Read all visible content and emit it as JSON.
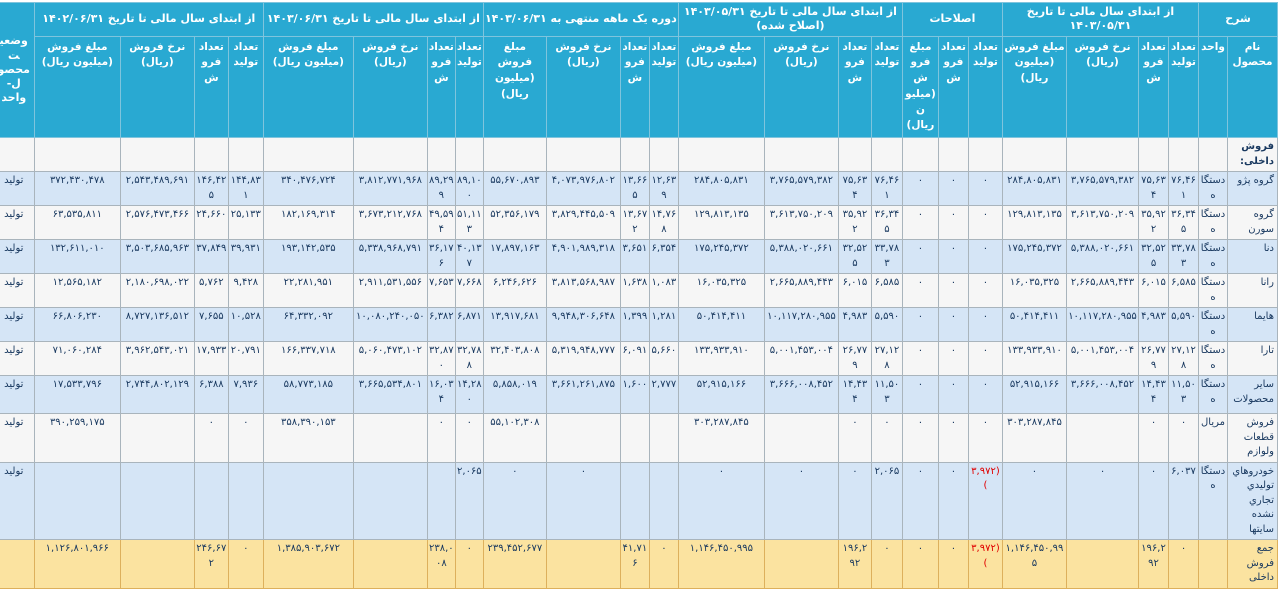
{
  "table": {
    "status_header": "وضعیت محصول- واحد",
    "sharh_header": "شرح",
    "name_header": "نام محصول",
    "unit_header": "واحد",
    "col_labels": {
      "tolid": "تعداد تولید",
      "forush": "تعداد فروش",
      "nerkh": "نرخ فروش (ریال)",
      "mablagh": "مبلغ فروش (میلیون ریال)"
    },
    "groups": [
      {
        "id": "g2",
        "title": "از ابتدای سال مالی تا تاریخ ۱۴۰۳/۰۵/۳۱",
        "cols": [
          "tolid",
          "forush",
          "nerkh",
          "mablagh"
        ]
      },
      {
        "id": "ga",
        "title": "اصلاحات",
        "cols": [
          "tolid",
          "forush",
          "mablagh"
        ]
      },
      {
        "id": "g4",
        "title": "از ابتدای سال مالی تا تاریخ ۱۴۰۳/۰۵/۳۱ (اصلاح شده)",
        "cols": [
          "tolid",
          "forush",
          "nerkh",
          "mablagh"
        ]
      },
      {
        "id": "g5",
        "title": "دوره یک ماهه منتهی به ۱۴۰۳/۰۶/۳۱",
        "cols": [
          "tolid",
          "forush",
          "nerkh",
          "mablagh"
        ]
      },
      {
        "id": "g6",
        "title": "از ابتدای سال مالی تا تاریخ ۱۴۰۳/۰۶/۳۱",
        "cols": [
          "tolid",
          "forush",
          "nerkh",
          "mablagh"
        ]
      },
      {
        "id": "g7",
        "title": "از ابتدای سال مالی تا تاریخ ۱۴۰۲/۰۶/۳۱",
        "cols": [
          "tolid",
          "forush",
          "nerkh",
          "mablagh"
        ]
      }
    ],
    "section_row": {
      "label": "فروش داخلی:"
    },
    "rows": [
      {
        "key": "peugeot",
        "name": "گروه پژو",
        "unit": "دستگاه",
        "status": "تولید",
        "zebra": "shade",
        "g2": {
          "tolid": "۷۶,۴۶۱",
          "forush": "۷۵,۶۳۴",
          "nerkh": "۳,۷۶۵,۵۷۹,۳۸۲",
          "mablagh": "۲۸۴,۸۰۵,۸۳۱"
        },
        "ga": {
          "tolid": "۰",
          "forush": "۰",
          "mablagh": "۰"
        },
        "g4": {
          "tolid": "۷۶,۴۶۱",
          "forush": "۷۵,۶۳۴",
          "nerkh": "۳,۷۶۵,۵۷۹,۳۸۲",
          "mablagh": "۲۸۴,۸۰۵,۸۳۱"
        },
        "g5": {
          "tolid": "۱۲,۶۳۹",
          "forush": "۱۳,۶۶۵",
          "nerkh": "۴,۰۷۳,۹۷۶,۸۰۲",
          "mablagh": "۵۵,۶۷۰,۸۹۳"
        },
        "g6": {
          "tolid": "۸۹,۱۰۰",
          "forush": "۸۹,۲۹۹",
          "nerkh": "۳,۸۱۲,۷۷۱,۹۶۸",
          "mablagh": "۳۴۰,۴۷۶,۷۲۴"
        },
        "g7": {
          "tolid": "۱۴۴,۸۳۱",
          "forush": "۱۴۶,۴۲۵",
          "nerkh": "۲,۵۴۳,۴۸۹,۶۹۱",
          "mablagh": "۳۷۲,۴۳۰,۴۷۸"
        }
      },
      {
        "key": "soren",
        "name": "گروه سورن",
        "unit": "دستگاه",
        "status": "تولید",
        "zebra": "plain",
        "g2": {
          "tolid": "۳۶,۳۴۵",
          "forush": "۳۵,۹۲۲",
          "nerkh": "۳,۶۱۳,۷۵۰,۲۰۹",
          "mablagh": "۱۲۹,۸۱۳,۱۳۵"
        },
        "ga": {
          "tolid": "۰",
          "forush": "۰",
          "mablagh": "۰"
        },
        "g4": {
          "tolid": "۳۶,۳۴۵",
          "forush": "۳۵,۹۲۲",
          "nerkh": "۳,۶۱۳,۷۵۰,۲۰۹",
          "mablagh": "۱۲۹,۸۱۳,۱۳۵"
        },
        "g5": {
          "tolid": "۱۴,۷۶۸",
          "forush": "۱۳,۶۷۲",
          "nerkh": "۳,۸۲۹,۴۴۵,۵۰۹",
          "mablagh": "۵۲,۳۵۶,۱۷۹"
        },
        "g6": {
          "tolid": "۵۱,۱۱۳",
          "forush": "۴۹,۵۹۴",
          "nerkh": "۳,۶۷۳,۲۱۲,۷۶۸",
          "mablagh": "۱۸۲,۱۶۹,۳۱۴"
        },
        "g7": {
          "tolid": "۲۵,۱۳۳",
          "forush": "۲۴,۶۶۰",
          "nerkh": "۲,۵۷۶,۴۷۳,۴۶۶",
          "mablagh": "۶۳,۵۳۵,۸۱۱"
        }
      },
      {
        "key": "dena",
        "name": "دنا",
        "unit": "دستگاه",
        "status": "تولید",
        "zebra": "shade",
        "g2": {
          "tolid": "۳۳,۷۸۳",
          "forush": "۳۲,۵۲۵",
          "nerkh": "۵,۳۸۸,۰۲۰,۶۶۱",
          "mablagh": "۱۷۵,۲۴۵,۳۷۲"
        },
        "ga": {
          "tolid": "۰",
          "forush": "۰",
          "mablagh": "۰"
        },
        "g4": {
          "tolid": "۳۳,۷۸۳",
          "forush": "۳۲,۵۲۵",
          "nerkh": "۵,۳۸۸,۰۲۰,۶۶۱",
          "mablagh": "۱۷۵,۲۴۵,۳۷۲"
        },
        "g5": {
          "tolid": "۶,۳۵۴",
          "forush": "۳,۶۵۱",
          "nerkh": "۴,۹۰۱,۹۸۹,۳۱۸",
          "mablagh": "۱۷,۸۹۷,۱۶۳"
        },
        "g6": {
          "tolid": "۴۰,۱۳۷",
          "forush": "۳۶,۱۷۶",
          "nerkh": "۵,۳۳۸,۹۶۸,۷۹۱",
          "mablagh": "۱۹۳,۱۴۲,۵۳۵"
        },
        "g7": {
          "tolid": "۳۹,۹۳۱",
          "forush": "۳۷,۸۴۹",
          "nerkh": "۳,۵۰۳,۶۸۵,۹۶۳",
          "mablagh": "۱۳۲,۶۱۱,۰۱۰"
        }
      },
      {
        "key": "rana",
        "name": "رانا",
        "unit": "دستگاه",
        "status": "تولید",
        "zebra": "plain",
        "g2": {
          "tolid": "۶,۵۸۵",
          "forush": "۶,۰۱۵",
          "nerkh": "۲,۶۶۵,۸۸۹,۴۴۳",
          "mablagh": "۱۶,۰۳۵,۳۲۵"
        },
        "ga": {
          "tolid": "۰",
          "forush": "۰",
          "mablagh": "۰"
        },
        "g4": {
          "tolid": "۶,۵۸۵",
          "forush": "۶,۰۱۵",
          "nerkh": "۲,۶۶۵,۸۸۹,۴۴۳",
          "mablagh": "۱۶,۰۳۵,۳۲۵"
        },
        "g5": {
          "tolid": "۱,۰۸۳",
          "forush": "۱,۶۳۸",
          "nerkh": "۳,۸۱۳,۵۶۸,۹۸۷",
          "mablagh": "۶,۲۴۶,۶۲۶"
        },
        "g6": {
          "tolid": "۷,۶۶۸",
          "forush": "۷,۶۵۳",
          "nerkh": "۲,۹۱۱,۵۳۱,۵۵۶",
          "mablagh": "۲۲,۲۸۱,۹۵۱"
        },
        "g7": {
          "tolid": "۹,۴۲۸",
          "forush": "۵,۷۶۲",
          "nerkh": "۲,۱۸۰,۶۹۸,۰۲۲",
          "mablagh": "۱۲,۵۶۵,۱۸۲"
        }
      },
      {
        "key": "haima",
        "name": "هایما",
        "unit": "دستگاه",
        "status": "تولید",
        "zebra": "shade",
        "g2": {
          "tolid": "۵,۵۹۰",
          "forush": "۴,۹۸۳",
          "nerkh": "۱۰,۱۱۷,۲۸۰,۹۵۵",
          "mablagh": "۵۰,۴۱۴,۴۱۱"
        },
        "ga": {
          "tolid": "۰",
          "forush": "۰",
          "mablagh": "۰"
        },
        "g4": {
          "tolid": "۵,۵۹۰",
          "forush": "۴,۹۸۳",
          "nerkh": "۱۰,۱۱۷,۲۸۰,۹۵۵",
          "mablagh": "۵۰,۴۱۴,۴۱۱"
        },
        "g5": {
          "tolid": "۱,۲۸۱",
          "forush": "۱,۳۹۹",
          "nerkh": "۹,۹۴۸,۳۰۶,۶۴۸",
          "mablagh": "۱۳,۹۱۷,۶۸۱"
        },
        "g6": {
          "tolid": "۶,۸۷۱",
          "forush": "۶,۳۸۲",
          "nerkh": "۱۰,۰۸۰,۲۴۰,۰۵۰",
          "mablagh": "۶۴,۳۳۲,۰۹۲"
        },
        "g7": {
          "tolid": "۱۰,۵۲۸",
          "forush": "۷,۶۵۵",
          "nerkh": "۸,۷۲۷,۱۳۶,۵۱۲",
          "mablagh": "۶۶,۸۰۶,۲۳۰"
        }
      },
      {
        "key": "tara",
        "name": "تارا",
        "unit": "دستگاه",
        "status": "تولید",
        "zebra": "plain",
        "g2": {
          "tolid": "۲۷,۱۲۸",
          "forush": "۲۶,۷۷۹",
          "nerkh": "۵,۰۰۱,۴۵۳,۰۰۴",
          "mablagh": "۱۳۳,۹۳۳,۹۱۰"
        },
        "ga": {
          "tolid": "۰",
          "forush": "۰",
          "mablagh": "۰"
        },
        "g4": {
          "tolid": "۲۷,۱۲۸",
          "forush": "۲۶,۷۷۹",
          "nerkh": "۵,۰۰۱,۴۵۳,۰۰۴",
          "mablagh": "۱۳۳,۹۳۳,۹۱۰"
        },
        "g5": {
          "tolid": "۵,۶۶۰",
          "forush": "۶,۰۹۱",
          "nerkh": "۵,۳۱۹,۹۴۸,۷۷۷",
          "mablagh": "۳۲,۴۰۳,۸۰۸"
        },
        "g6": {
          "tolid": "۳۲,۷۸۸",
          "forush": "۳۲,۸۷۰",
          "nerkh": "۵,۰۶۰,۴۷۳,۱۰۲",
          "mablagh": "۱۶۶,۳۳۷,۷۱۸"
        },
        "g7": {
          "tolid": "۲۰,۷۹۱",
          "forush": "۱۷,۹۳۳",
          "nerkh": "۳,۹۶۲,۵۴۳,۰۲۱",
          "mablagh": "۷۱,۰۶۰,۲۸۴"
        }
      },
      {
        "key": "other-products",
        "name": "سایر محصولات",
        "unit": "دستگاه",
        "status": "تولید",
        "zebra": "shade",
        "g2": {
          "tolid": "۱۱,۵۰۳",
          "forush": "۱۴,۴۳۴",
          "nerkh": "۳,۶۶۶,۰۰۸,۴۵۲",
          "mablagh": "۵۲,۹۱۵,۱۶۶"
        },
        "ga": {
          "tolid": "۰",
          "forush": "۰",
          "mablagh": "۰"
        },
        "g4": {
          "tolid": "۱۱,۵۰۳",
          "forush": "۱۴,۴۳۴",
          "nerkh": "۳,۶۶۶,۰۰۸,۴۵۲",
          "mablagh": "۵۲,۹۱۵,۱۶۶"
        },
        "g5": {
          "tolid": "۲,۷۷۷",
          "forush": "۱,۶۰۰",
          "nerkh": "۳,۶۶۱,۲۶۱,۸۷۵",
          "mablagh": "۵,۸۵۸,۰۱۹"
        },
        "g6": {
          "tolid": "۱۴,۲۸۰",
          "forush": "۱۶,۰۳۴",
          "nerkh": "۳,۶۶۵,۵۳۴,۸۰۱",
          "mablagh": "۵۸,۷۷۳,۱۸۵"
        },
        "g7": {
          "tolid": "۷,۹۳۶",
          "forush": "۶,۳۸۸",
          "nerkh": "۲,۷۴۴,۸۰۲,۱۲۹",
          "mablagh": "۱۷,۵۳۳,۷۹۶"
        }
      },
      {
        "key": "parts-sales",
        "name": "فروش قطعات ولوازم",
        "unit": "مریال",
        "status": "تولید",
        "zebra": "plain",
        "g2": {
          "tolid": "۰",
          "forush": "۰",
          "nerkh": "",
          "mablagh": "۳۰۳,۲۸۷,۸۴۵"
        },
        "ga": {
          "tolid": "۰",
          "forush": "۰",
          "mablagh": "۰"
        },
        "g4": {
          "tolid": "۰",
          "forush": "۰",
          "nerkh": "",
          "mablagh": "۳۰۳,۲۸۷,۸۴۵"
        },
        "g5": {
          "tolid": "",
          "forush": "",
          "nerkh": "",
          "mablagh": "۵۵,۱۰۲,۳۰۸"
        },
        "g6": {
          "tolid": "۰",
          "forush": "۰",
          "nerkh": "",
          "mablagh": "۳۵۸,۳۹۰,۱۵۳"
        },
        "g7": {
          "tolid": "۰",
          "forush": "۰",
          "nerkh": "",
          "mablagh": "۳۹۰,۲۵۹,۱۷۵"
        }
      },
      {
        "key": "untraded-vehicles",
        "name": "خودروهاي توليدي تجاري نشده سايتها",
        "unit": "دستگاه",
        "status": "تولید",
        "zebra": "shade",
        "g2": {
          "tolid": "۶,۰۳۷",
          "forush": "۰",
          "nerkh": "۰",
          "mablagh": "۰"
        },
        "ga": {
          "tolid": "(۳,۹۷۲)",
          "forush": "۰",
          "mablagh": "۰"
        },
        "g4": {
          "tolid": "۲,۰۶۵",
          "forush": "۰",
          "nerkh": "۰",
          "mablagh": "۰"
        },
        "g5": {
          "tolid": "",
          "forush": "",
          "nerkh": "۰",
          "mablagh": "۰"
        },
        "g6": {
          "tolid": "۲,۰۶۵",
          "forush": "",
          "nerkh": "",
          "mablagh": ""
        },
        "g7": {
          "tolid": "",
          "forush": "",
          "nerkh": "",
          "mablagh": ""
        }
      },
      {
        "key": "total-domestic",
        "name": "جمع فروش داخلی",
        "unit": "",
        "status": "",
        "zebra": "total",
        "g2": {
          "tolid": "۰",
          "forush": "۱۹۶,۲۹۲",
          "nerkh": "",
          "mablagh": "۱,۱۴۶,۴۵۰,۹۹۵"
        },
        "ga": {
          "tolid": "(۳,۹۷۲)",
          "forush": "۰",
          "mablagh": "۰"
        },
        "g4": {
          "tolid": "۰",
          "forush": "۱۹۶,۲۹۲",
          "nerkh": "",
          "mablagh": "۱,۱۴۶,۴۵۰,۹۹۵"
        },
        "g5": {
          "tolid": "۰",
          "forush": "۴۱,۷۱۶",
          "nerkh": "",
          "mablagh": "۲۳۹,۴۵۲,۶۷۷"
        },
        "g6": {
          "tolid": "۰",
          "forush": "۲۳۸,۰۰۸",
          "nerkh": "",
          "mablagh": "۱,۳۸۵,۹۰۳,۶۷۲"
        },
        "g7": {
          "tolid": "۰",
          "forush": "۲۴۶,۶۷۲",
          "nerkh": "",
          "mablagh": "۱,۱۲۶,۸۰۱,۹۶۶"
        }
      }
    ]
  }
}
